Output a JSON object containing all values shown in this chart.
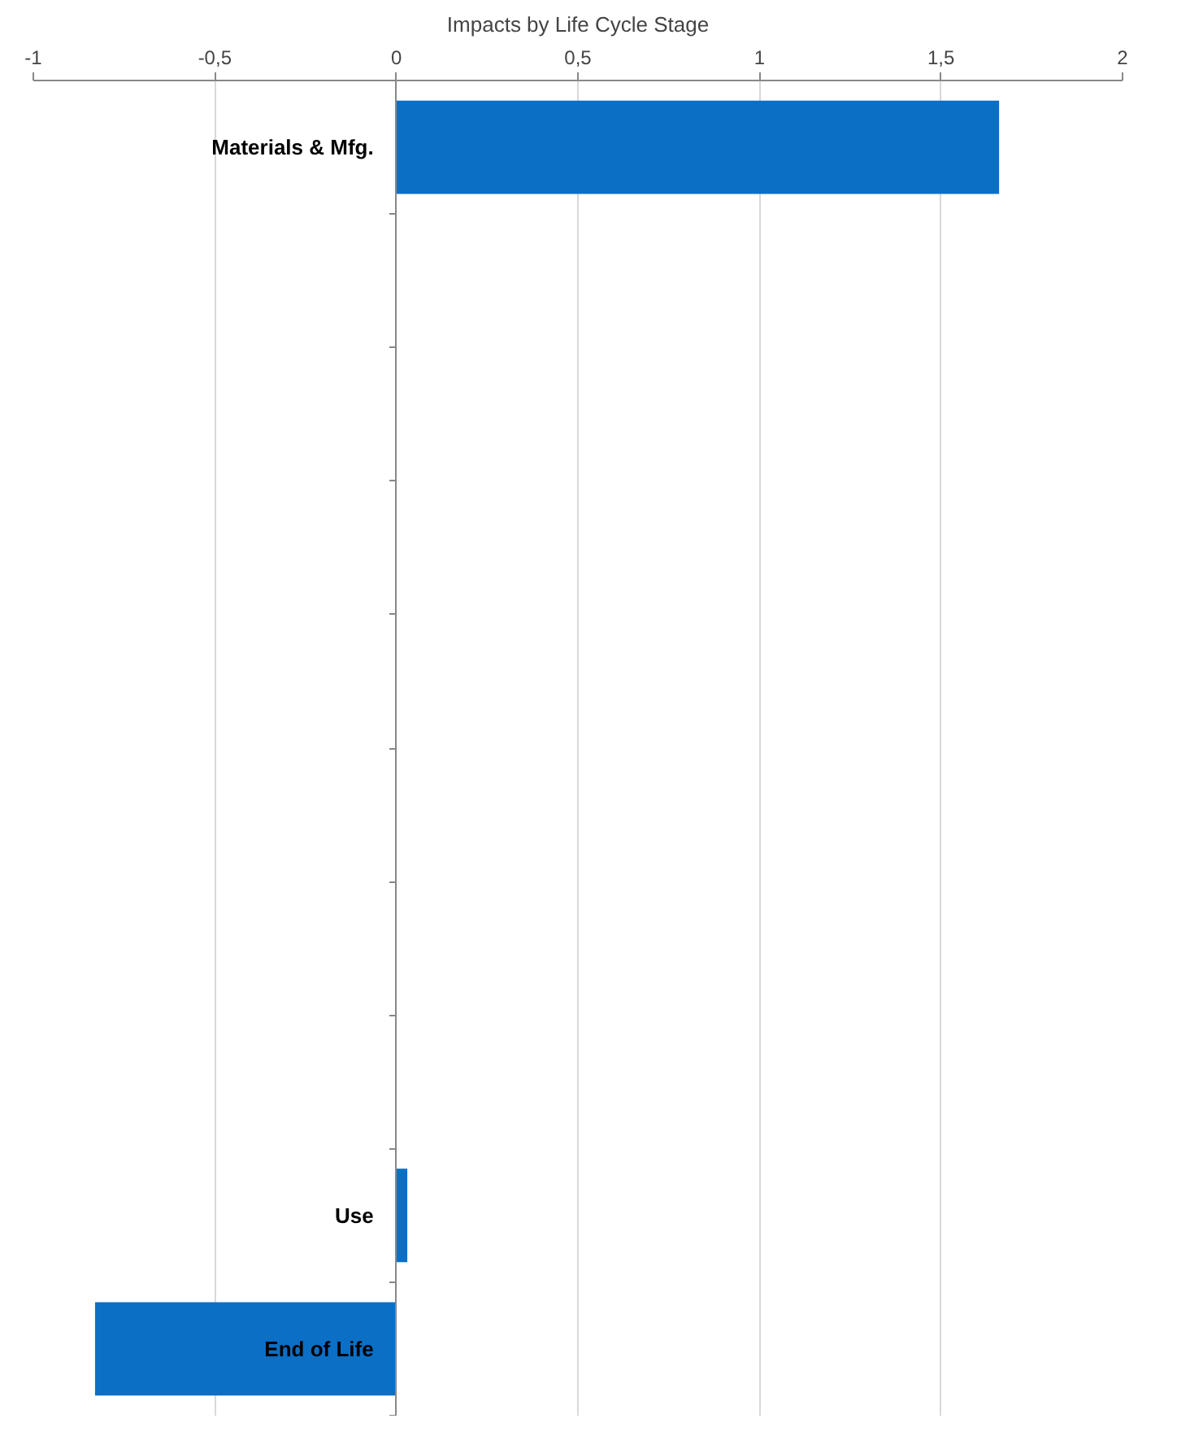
{
  "chart_data": {
    "type": "bar",
    "orientation": "horizontal",
    "title": "Impacts by Life Cycle Stage",
    "categories": [
      "Materials & Mfg.",
      null,
      null,
      null,
      null,
      null,
      null,
      null,
      "Use",
      "End of Life"
    ],
    "values": [
      1.66,
      null,
      null,
      null,
      null,
      null,
      null,
      null,
      0.03,
      -0.83
    ],
    "color": "#0b6fc6",
    "xlim": [
      -1,
      2
    ],
    "xticks": [
      -1,
      {
        "value": -0.5,
        "label": "-0,5"
      },
      0,
      {
        "value": 0.5,
        "label": "0,5"
      },
      1,
      {
        "value": 1.5,
        "label": "1,5"
      },
      2
    ],
    "grid": "x"
  }
}
